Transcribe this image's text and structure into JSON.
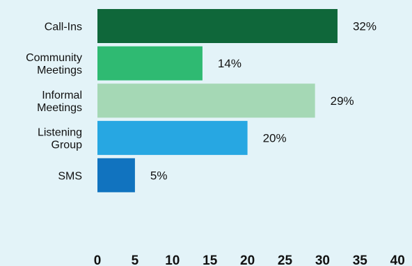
{
  "chart_data": {
    "type": "bar",
    "orientation": "horizontal",
    "categories": [
      [
        "Call-Ins"
      ],
      [
        "Community",
        "Meetings"
      ],
      [
        "Informal",
        "Meetings"
      ],
      [
        "Listening",
        "Group"
      ],
      [
        "SMS"
      ]
    ],
    "values": [
      32,
      14,
      29,
      20,
      5
    ],
    "data_labels": [
      "32%",
      "14%",
      "29%",
      "20%",
      "5%"
    ],
    "bar_colors": [
      "#0f673a",
      "#2fba72",
      "#a5d8b5",
      "#27a7e2",
      "#1173bf"
    ],
    "xlim": [
      0,
      40
    ],
    "xticks": [
      0,
      5,
      10,
      15,
      20,
      25,
      30,
      35,
      40
    ],
    "grid": false,
    "title": "",
    "xlabel": "",
    "ylabel": ""
  }
}
